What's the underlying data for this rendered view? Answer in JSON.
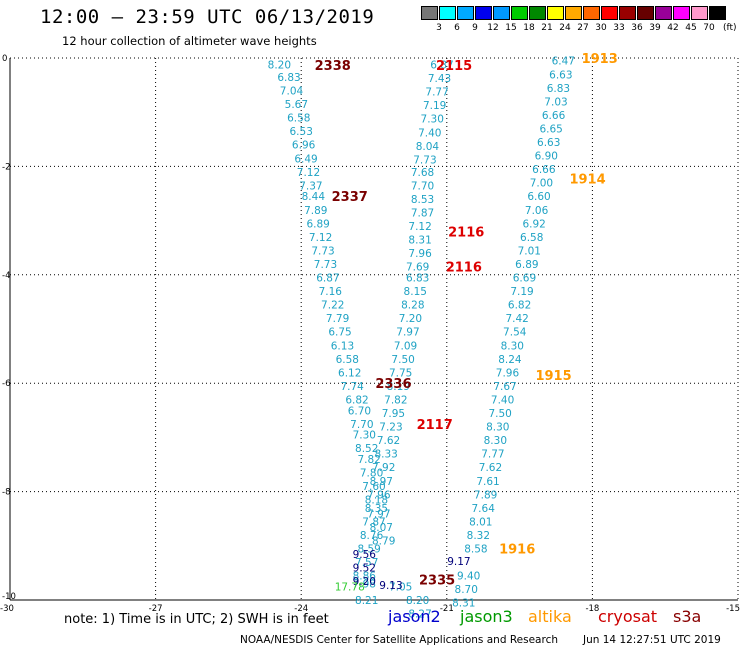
{
  "header": {
    "title": "12:00 – 23:59 UTC 06/13/2019",
    "subtitle": "12 hour collection of altimeter wave heights"
  },
  "colorbar": {
    "colors": [
      "#777777",
      "#00ffff",
      "#00aaff",
      "#0000ee",
      "#0099ff",
      "#00cc00",
      "#008800",
      "#ffff00",
      "#ffaa00",
      "#ff6600",
      "#ff0000",
      "#990000",
      "#660000",
      "#990099",
      "#ff00ff",
      "#ff99cc",
      "#000000"
    ],
    "labels": [
      "3",
      "6",
      "9",
      "12",
      "15",
      "18",
      "21",
      "24",
      "27",
      "30",
      "33",
      "36",
      "39",
      "42",
      "45",
      "70"
    ],
    "unit": "(ft)"
  },
  "footer": {
    "note": "note: 1) Time is in UTC; 2) SWH is in feet",
    "satellites": [
      {
        "name": "jason2",
        "color": "#0000cc"
      },
      {
        "name": "jason3",
        "color": "#009900"
      },
      {
        "name": "altika",
        "color": "#ff9900"
      },
      {
        "name": "cryosat",
        "color": "#cc0000"
      },
      {
        "name": "s3a",
        "color": "#880000"
      }
    ],
    "credit": "NOAA/NESDIS Center for Satellite Applications and Research",
    "timestamp": "Jun 14 12:27:51 UTC 2019"
  },
  "chart_data": {
    "type": "scatter",
    "title": "12:00 – 23:59 UTC 06/13/2019",
    "xlim": [
      -30,
      -15
    ],
    "ylim": [
      -10,
      0
    ],
    "x_ticks": [
      "-30",
      "-27",
      "-24",
      "-21",
      "-18",
      "-15"
    ],
    "y_ticks": [
      "0",
      "-2",
      "-4",
      "-6",
      "-8",
      "-10"
    ],
    "grid": true,
    "colors": {
      "teal": "#1fa2c4",
      "navy": "#00007a",
      "green": "#33cc33",
      "pass_dark": "#7a0000",
      "pass_red": "#dd0000",
      "pass_orange": "#ff9900"
    },
    "pass_labels": [
      {
        "text": "2338",
        "x": -23.35,
        "y": -0.13,
        "color": "pass_dark"
      },
      {
        "text": "2115",
        "x": -20.85,
        "y": -0.13,
        "color": "pass_red"
      },
      {
        "text": "1913",
        "x": -17.85,
        "y": 0.0,
        "color": "pass_orange"
      },
      {
        "text": "1914",
        "x": -18.1,
        "y": -2.22,
        "color": "pass_orange"
      },
      {
        "text": "2337",
        "x": -23.0,
        "y": -2.55,
        "color": "pass_dark"
      },
      {
        "text": "2116",
        "x": -20.6,
        "y": -3.2,
        "color": "pass_red"
      },
      {
        "text": "2116",
        "x": -20.65,
        "y": -3.85,
        "color": "pass_red"
      },
      {
        "text": "1915",
        "x": -18.8,
        "y": -5.85,
        "color": "pass_orange"
      },
      {
        "text": "2336",
        "x": -22.1,
        "y": -6.0,
        "color": "pass_dark"
      },
      {
        "text": "2117",
        "x": -21.25,
        "y": -6.75,
        "color": "pass_red"
      },
      {
        "text": "1916",
        "x": -19.55,
        "y": -9.05,
        "color": "pass_orange"
      },
      {
        "text": "2335",
        "x": -21.2,
        "y": -9.62,
        "color": "pass_dark"
      }
    ],
    "series": [
      {
        "color": "teal",
        "points": [
          [
            -24.45,
            -0.12,
            "8.20"
          ],
          [
            -24.25,
            -0.35,
            "6.83"
          ],
          [
            -24.2,
            -0.6,
            "7.04"
          ],
          [
            -24.1,
            -0.85,
            "5.67"
          ],
          [
            -24.05,
            -1.1,
            "6.58"
          ],
          [
            -24.0,
            -1.35,
            "6.53"
          ],
          [
            -23.95,
            -1.6,
            "6.96"
          ],
          [
            -23.9,
            -1.85,
            "6.49"
          ],
          [
            -23.85,
            -2.1,
            "7.12"
          ],
          [
            -23.8,
            -2.35,
            "7.37"
          ],
          [
            -23.75,
            -2.55,
            "8.44"
          ],
          [
            -23.7,
            -2.8,
            "7.89"
          ],
          [
            -23.65,
            -3.05,
            "6.89"
          ],
          [
            -23.6,
            -3.3,
            "7.12"
          ],
          [
            -23.55,
            -3.55,
            "7.73"
          ],
          [
            -23.5,
            -3.8,
            "7.73"
          ],
          [
            -23.45,
            -4.05,
            "6.87"
          ],
          [
            -23.4,
            -4.3,
            "7.16"
          ],
          [
            -23.35,
            -4.55,
            "7.22"
          ],
          [
            -23.25,
            -4.8,
            "7.79"
          ],
          [
            -23.2,
            -5.05,
            "6.75"
          ],
          [
            -23.15,
            -5.3,
            "6.13"
          ],
          [
            -23.05,
            -5.55,
            "6.58"
          ],
          [
            -23.0,
            -5.8,
            "6.12"
          ],
          [
            -22.95,
            -6.05,
            "7.74"
          ],
          [
            -22.85,
            -6.3,
            "6.82"
          ],
          [
            -22.8,
            -6.5,
            "6.70"
          ],
          [
            -22.75,
            -6.75,
            "7.70"
          ],
          [
            -22.7,
            -6.95,
            "7.30"
          ],
          [
            -22.65,
            -7.2,
            "8.52"
          ],
          [
            -22.6,
            -7.4,
            "7.82"
          ],
          [
            -22.55,
            -7.65,
            "7.80"
          ],
          [
            -22.5,
            -7.9,
            "7.60"
          ],
          [
            -22.45,
            -8.15,
            "8.18"
          ],
          [
            -22.4,
            -8.4,
            "7.97"
          ],
          [
            -22.35,
            -8.65,
            "8.07"
          ],
          [
            -22.3,
            -8.9,
            "8.79"
          ],
          [
            -22.7,
            -9.7,
            "7.98"
          ],
          [
            -22.65,
            -10.0,
            "8.21"
          ],
          [
            -21.1,
            -0.12,
            "6.87"
          ],
          [
            -21.15,
            -0.37,
            "7.43"
          ],
          [
            -21.2,
            -0.62,
            "7.77"
          ],
          [
            -21.25,
            -0.87,
            "7.19"
          ],
          [
            -21.3,
            -1.12,
            "7.30"
          ],
          [
            -21.35,
            -1.37,
            "7.40"
          ],
          [
            -21.4,
            -1.62,
            "8.04"
          ],
          [
            -21.45,
            -1.87,
            "7.73"
          ],
          [
            -21.5,
            -2.1,
            "7.68"
          ],
          [
            -21.5,
            -2.35,
            "7.70"
          ],
          [
            -21.5,
            -2.6,
            "8.53"
          ],
          [
            -21.5,
            -2.85,
            "7.87"
          ],
          [
            -21.55,
            -3.1,
            "7.12"
          ],
          [
            -21.55,
            -3.35,
            "8.31"
          ],
          [
            -21.55,
            -3.6,
            "7.96"
          ],
          [
            -21.6,
            -3.85,
            "7.69"
          ],
          [
            -21.6,
            -4.05,
            "6.83"
          ],
          [
            -21.65,
            -4.3,
            "8.15"
          ],
          [
            -21.7,
            -4.55,
            "8.28"
          ],
          [
            -21.75,
            -4.8,
            "7.20"
          ],
          [
            -21.8,
            -5.05,
            "7.97"
          ],
          [
            -21.85,
            -5.3,
            "7.09"
          ],
          [
            -21.9,
            -5.55,
            "7.50"
          ],
          [
            -21.95,
            -5.8,
            "7.75"
          ],
          [
            -22.0,
            -6.05,
            "8.19"
          ],
          [
            -22.05,
            -6.3,
            "7.82"
          ],
          [
            -22.1,
            -6.55,
            "7.95"
          ],
          [
            -22.15,
            -6.8,
            "7.23"
          ],
          [
            -22.2,
            -7.05,
            "7.62"
          ],
          [
            -22.25,
            -7.3,
            "8.33"
          ],
          [
            -22.3,
            -7.55,
            "7.92"
          ],
          [
            -22.35,
            -7.8,
            "8.97"
          ],
          [
            -22.4,
            -8.05,
            "7.96"
          ],
          [
            -22.45,
            -8.3,
            "8.35"
          ],
          [
            -22.5,
            -8.55,
            "7.87"
          ],
          [
            -22.55,
            -8.8,
            "8.76"
          ],
          [
            -22.6,
            -9.05,
            "8.59"
          ],
          [
            -22.65,
            -9.3,
            "7.57"
          ],
          [
            -22.7,
            -9.55,
            "8.86"
          ],
          [
            -21.95,
            -9.75,
            "7.05"
          ],
          [
            -21.6,
            -10.0,
            "8.20"
          ],
          [
            -21.55,
            -10.25,
            "8.27"
          ],
          [
            -18.6,
            -0.05,
            "6.47"
          ],
          [
            -18.65,
            -0.3,
            "6.63"
          ],
          [
            -18.7,
            -0.55,
            "6.83"
          ],
          [
            -18.75,
            -0.8,
            "7.03"
          ],
          [
            -18.8,
            -1.05,
            "6.66"
          ],
          [
            -18.85,
            -1.3,
            "6.65"
          ],
          [
            -18.9,
            -1.55,
            "6.63"
          ],
          [
            -18.95,
            -1.8,
            "6.90"
          ],
          [
            -19.0,
            -2.05,
            "6.66"
          ],
          [
            -19.05,
            -2.3,
            "7.00"
          ],
          [
            -19.1,
            -2.55,
            "6.60"
          ],
          [
            -19.15,
            -2.8,
            "7.06"
          ],
          [
            -19.2,
            -3.05,
            "6.92"
          ],
          [
            -19.25,
            -3.3,
            "6.58"
          ],
          [
            -19.3,
            -3.55,
            "7.01"
          ],
          [
            -19.35,
            -3.8,
            "6.89"
          ],
          [
            -19.4,
            -4.05,
            "6.69"
          ],
          [
            -19.45,
            -4.3,
            "7.19"
          ],
          [
            -19.5,
            -4.55,
            "6.82"
          ],
          [
            -19.55,
            -4.8,
            "7.42"
          ],
          [
            -19.6,
            -5.05,
            "7.54"
          ],
          [
            -19.65,
            -5.3,
            "8.30"
          ],
          [
            -19.7,
            -5.55,
            "8.24"
          ],
          [
            -19.75,
            -5.8,
            "7.96"
          ],
          [
            -19.8,
            -6.05,
            "7.67"
          ],
          [
            -19.85,
            -6.3,
            "7.40"
          ],
          [
            -19.9,
            -6.55,
            "7.50"
          ],
          [
            -19.95,
            -6.8,
            "8.30"
          ],
          [
            -20.0,
            -7.05,
            "8.30"
          ],
          [
            -20.05,
            -7.3,
            "7.77"
          ],
          [
            -20.1,
            -7.55,
            "7.62"
          ],
          [
            -20.15,
            -7.8,
            "7.61"
          ],
          [
            -20.2,
            -8.05,
            "7.89"
          ],
          [
            -20.25,
            -8.3,
            "7.64"
          ],
          [
            -20.3,
            -8.55,
            "8.01"
          ],
          [
            -20.35,
            -8.8,
            "8.32"
          ],
          [
            -20.4,
            -9.05,
            "8.58"
          ],
          [
            -20.55,
            -9.55,
            "9.40"
          ],
          [
            -20.6,
            -9.8,
            "8.70"
          ],
          [
            -20.65,
            -10.05,
            "8.31"
          ]
        ]
      },
      {
        "color": "navy",
        "points": [
          [
            -22.7,
            -9.15,
            "9.56"
          ],
          [
            -22.7,
            -9.4,
            "9.52"
          ],
          [
            -22.7,
            -9.65,
            "9.20"
          ],
          [
            -22.15,
            -9.72,
            "9.13"
          ],
          [
            -20.75,
            -9.28,
            "9.17"
          ]
        ]
      },
      {
        "color": "green",
        "points": [
          [
            -23.0,
            -9.75,
            "17.78"
          ]
        ]
      }
    ]
  }
}
